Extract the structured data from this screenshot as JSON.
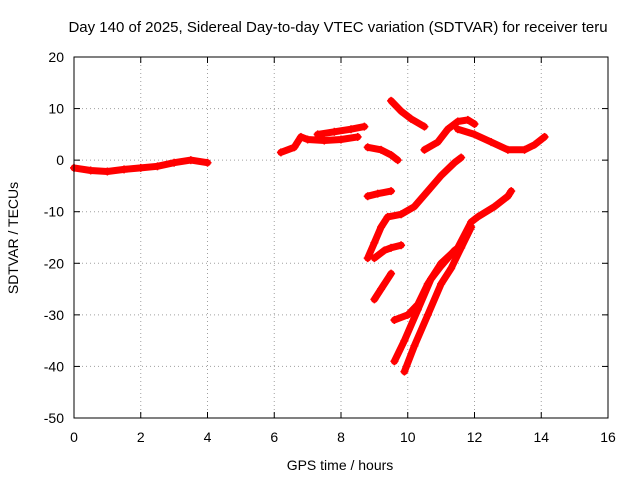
{
  "chart_data": {
    "type": "scatter",
    "title": "Day 140 of 2025, Sidereal Day-to-day VTEC variation (SDTVAR) for receiver teru",
    "xlabel": "GPS time / hours",
    "ylabel": "SDTVAR / TECUs",
    "xlim": [
      0,
      16
    ],
    "ylim": [
      -50,
      20
    ],
    "xticks": [
      "0",
      "2",
      "4",
      "6",
      "8",
      "10",
      "12",
      "14",
      "16"
    ],
    "yticks": [
      "20",
      "10",
      "0",
      "-10",
      "-20",
      "-30",
      "-40",
      "-50"
    ],
    "grid": true,
    "marker": "+",
    "color": "#ff0000",
    "series": [
      {
        "points": [
          [
            0.0,
            -1.5
          ],
          [
            0.5,
            -2.0
          ],
          [
            1.0,
            -2.2
          ],
          [
            1.5,
            -1.8
          ],
          [
            2.0,
            -1.5
          ],
          [
            2.5,
            -1.2
          ],
          [
            3.0,
            -0.5
          ],
          [
            3.5,
            0.0
          ],
          [
            4.0,
            -0.5
          ]
        ]
      },
      {
        "points": [
          [
            6.2,
            1.5
          ],
          [
            6.6,
            2.5
          ],
          [
            6.8,
            4.5
          ],
          [
            7.0,
            4.0
          ],
          [
            7.5,
            3.8
          ],
          [
            8.0,
            4.0
          ],
          [
            8.5,
            4.5
          ]
        ]
      },
      {
        "points": [
          [
            7.3,
            5.0
          ],
          [
            7.8,
            5.5
          ],
          [
            8.3,
            6.0
          ],
          [
            8.7,
            6.5
          ]
        ]
      },
      {
        "points": [
          [
            8.8,
            2.5
          ],
          [
            9.2,
            2.0
          ],
          [
            9.5,
            1.0
          ],
          [
            9.7,
            0.0
          ]
        ]
      },
      {
        "points": [
          [
            8.8,
            -7.0
          ],
          [
            9.1,
            -6.5
          ],
          [
            9.5,
            -6.0
          ]
        ]
      },
      {
        "points": [
          [
            9.5,
            11.5
          ],
          [
            9.8,
            9.5
          ],
          [
            10.1,
            8.0
          ],
          [
            10.5,
            6.5
          ]
        ]
      },
      {
        "points": [
          [
            10.5,
            2.0
          ],
          [
            10.9,
            3.5
          ],
          [
            11.2,
            6.0
          ],
          [
            11.5,
            7.5
          ],
          [
            11.8,
            7.8
          ],
          [
            12.0,
            7.0
          ]
        ]
      },
      {
        "points": [
          [
            11.5,
            6.0
          ],
          [
            12.0,
            5.0
          ],
          [
            12.5,
            3.5
          ],
          [
            13.0,
            2.0
          ],
          [
            13.5,
            2.0
          ],
          [
            13.8,
            3.0
          ],
          [
            14.1,
            4.5
          ]
        ]
      },
      {
        "points": [
          [
            8.8,
            -19.0
          ],
          [
            9.0,
            -16.0
          ],
          [
            9.2,
            -13.0
          ],
          [
            9.4,
            -11.0
          ],
          [
            9.8,
            -10.5
          ],
          [
            10.2,
            -9.0
          ],
          [
            10.6,
            -6.0
          ],
          [
            11.0,
            -3.0
          ],
          [
            11.4,
            -0.5
          ],
          [
            11.6,
            0.5
          ]
        ]
      },
      {
        "points": [
          [
            9.0,
            -19.0
          ],
          [
            9.3,
            -17.5
          ],
          [
            9.5,
            -17.0
          ],
          [
            9.8,
            -16.5
          ]
        ]
      },
      {
        "points": [
          [
            9.0,
            -27.0
          ],
          [
            9.2,
            -25.0
          ],
          [
            9.5,
            -22.0
          ]
        ]
      },
      {
        "points": [
          [
            9.6,
            -31.0
          ],
          [
            10.0,
            -30.0
          ],
          [
            10.3,
            -28.0
          ],
          [
            10.6,
            -24.0
          ],
          [
            11.0,
            -20.0
          ],
          [
            11.5,
            -17.0
          ],
          [
            11.9,
            -12.0
          ],
          [
            12.1,
            -11.0
          ],
          [
            12.6,
            -9.0
          ],
          [
            13.0,
            -7.0
          ],
          [
            13.1,
            -6.0
          ]
        ]
      },
      {
        "points": [
          [
            9.6,
            -39.0
          ],
          [
            9.9,
            -35.0
          ],
          [
            10.3,
            -29.0
          ],
          [
            10.7,
            -23.0
          ],
          [
            11.0,
            -20.5
          ],
          [
            11.4,
            -17.5
          ]
        ]
      },
      {
        "points": [
          [
            9.9,
            -41.0
          ],
          [
            10.2,
            -36.0
          ],
          [
            10.6,
            -30.0
          ],
          [
            11.0,
            -24.0
          ],
          [
            11.3,
            -21.0
          ],
          [
            11.6,
            -17.0
          ],
          [
            11.9,
            -13.0
          ]
        ]
      }
    ]
  }
}
